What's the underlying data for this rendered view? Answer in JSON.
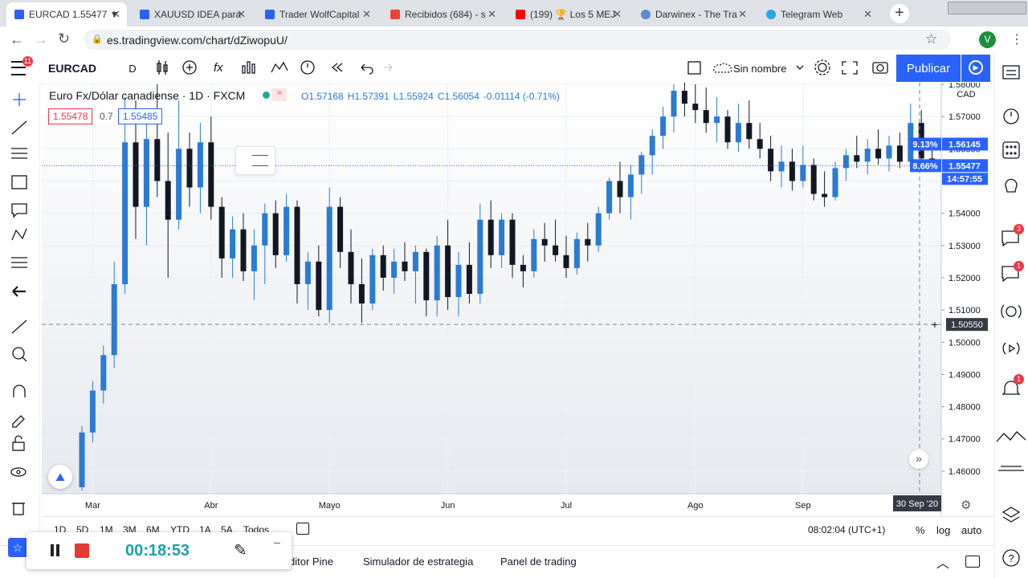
{
  "browser": {
    "tabs": [
      "EURCAD 1.55477 ▼",
      "XAUUSD IDEA para",
      "Trader WolfCapital",
      "Recibidos (684) - s",
      "(199) 🏆 Los 5 MEJ",
      "Darwinex - The Tra",
      "Telegram Web"
    ],
    "url": "es.tradingview.com/chart/dZiwopuU/",
    "profile": "V"
  },
  "toolbar": {
    "symbol": "EURCAD",
    "interval": "D",
    "layout_name": "Sin nombre",
    "publish": "Publicar",
    "alerts_badge": "11"
  },
  "legend": {
    "title": "Euro Fx/Dólar canadiense · 1D · FXCM",
    "ohlc": [
      "O1.57168",
      "H1.57391",
      "L1.55924",
      "C1.56054",
      "-0.01114 (-0.71%)"
    ],
    "bid": "1.55478",
    "spread": "0.7",
    "ask": "1.55485"
  },
  "chart_data": {
    "type": "candlestick",
    "currency": "CAD",
    "categories": [
      null,
      "Mar",
      null,
      null,
      null,
      null,
      null,
      null,
      null,
      null,
      null,
      null,
      "Abr",
      null,
      null,
      null,
      null,
      null,
      null,
      null,
      null,
      null,
      null,
      "Mayo",
      null,
      null,
      null,
      null,
      null,
      null,
      null,
      null,
      null,
      null,
      "Jun",
      null,
      null,
      null,
      null,
      null,
      null,
      null,
      null,
      null,
      null,
      "Jul",
      null,
      null,
      null,
      null,
      null,
      null,
      null,
      null,
      null,
      null,
      null,
      "Ago",
      null,
      null,
      null,
      null,
      null,
      null,
      null,
      null,
      null,
      "Sep",
      null,
      null,
      null,
      null,
      null,
      null,
      null,
      null,
      null,
      null,
      null,
      null
    ],
    "open": [
      1.455,
      1.472,
      1.485,
      1.496,
      1.518,
      1.562,
      1.542,
      1.563,
      1.55,
      1.538,
      1.56,
      1.548,
      1.562,
      1.542,
      1.526,
      1.535,
      1.522,
      1.53,
      1.54,
      1.527,
      1.542,
      1.518,
      1.525,
      1.51,
      1.542,
      1.528,
      1.518,
      1.512,
      1.527,
      1.52,
      1.525,
      1.522,
      1.528,
      1.513,
      1.53,
      1.514,
      1.524,
      1.515,
      1.538,
      1.527,
      1.538,
      1.524,
      1.522,
      1.532,
      1.53,
      1.527,
      1.523,
      1.532,
      1.53,
      1.54,
      1.55,
      1.545,
      1.552,
      1.558,
      1.564,
      1.57,
      1.578,
      1.574,
      1.572,
      1.568,
      1.57,
      1.562,
      1.568,
      1.563,
      1.56,
      1.553,
      1.556,
      1.55,
      1.555,
      1.546,
      1.545,
      1.554,
      1.558,
      1.556,
      1.56,
      1.557,
      1.561,
      1.556,
      1.568,
      1.557
    ],
    "high": [
      1.474,
      1.488,
      1.499,
      1.525,
      1.576,
      1.575,
      1.57,
      1.58,
      1.565,
      1.575,
      1.565,
      1.568,
      1.57,
      1.545,
      1.539,
      1.54,
      1.535,
      1.543,
      1.544,
      1.546,
      1.544,
      1.528,
      1.53,
      1.548,
      1.545,
      1.535,
      1.526,
      1.529,
      1.53,
      1.529,
      1.531,
      1.53,
      1.529,
      1.533,
      1.538,
      1.528,
      1.531,
      1.543,
      1.544,
      1.54,
      1.54,
      1.527,
      1.535,
      1.537,
      1.538,
      1.533,
      1.534,
      1.537,
      1.542,
      1.551,
      1.556,
      1.555,
      1.559,
      1.566,
      1.573,
      1.58,
      1.581,
      1.58,
      1.579,
      1.576,
      1.572,
      1.574,
      1.575,
      1.568,
      1.564,
      1.561,
      1.56,
      1.561,
      1.557,
      1.553,
      1.556,
      1.56,
      1.564,
      1.563,
      1.566,
      1.564,
      1.565,
      1.574,
      1.572,
      1.562
    ],
    "low": [
      1.454,
      1.469,
      1.481,
      1.492,
      1.515,
      1.532,
      1.53,
      1.545,
      1.52,
      1.535,
      1.542,
      1.54,
      1.538,
      1.52,
      1.52,
      1.519,
      1.513,
      1.518,
      1.523,
      1.525,
      1.512,
      1.51,
      1.508,
      1.506,
      1.523,
      1.512,
      1.506,
      1.51,
      1.516,
      1.515,
      1.519,
      1.512,
      1.508,
      1.508,
      1.51,
      1.508,
      1.512,
      1.512,
      1.523,
      1.523,
      1.52,
      1.517,
      1.52,
      1.525,
      1.525,
      1.52,
      1.521,
      1.525,
      1.528,
      1.538,
      1.54,
      1.538,
      1.546,
      1.552,
      1.56,
      1.565,
      1.57,
      1.568,
      1.565,
      1.562,
      1.56,
      1.559,
      1.56,
      1.557,
      1.55,
      1.548,
      1.547,
      1.548,
      1.544,
      1.542,
      1.544,
      1.55,
      1.554,
      1.552,
      1.555,
      1.553,
      1.554,
      1.553,
      1.554,
      1.554
    ],
    "close": [
      1.472,
      1.485,
      1.496,
      1.518,
      1.562,
      1.542,
      1.563,
      1.55,
      1.538,
      1.56,
      1.548,
      1.562,
      1.542,
      1.526,
      1.535,
      1.522,
      1.53,
      1.54,
      1.527,
      1.542,
      1.518,
      1.525,
      1.51,
      1.542,
      1.528,
      1.518,
      1.512,
      1.527,
      1.52,
      1.525,
      1.522,
      1.528,
      1.513,
      1.53,
      1.514,
      1.524,
      1.515,
      1.538,
      1.527,
      1.538,
      1.524,
      1.522,
      1.532,
      1.53,
      1.527,
      1.523,
      1.532,
      1.53,
      1.54,
      1.55,
      1.545,
      1.552,
      1.558,
      1.564,
      1.57,
      1.578,
      1.574,
      1.572,
      1.568,
      1.57,
      1.562,
      1.568,
      1.563,
      1.56,
      1.553,
      1.556,
      1.55,
      1.555,
      1.546,
      1.545,
      1.554,
      1.558,
      1.556,
      1.56,
      1.557,
      1.561,
      1.556,
      1.568,
      1.557,
      1.5548
    ],
    "up_color": "#2a7bd3",
    "down_color": "#131722",
    "ylim": [
      1.453,
      1.5805
    ],
    "yticks": [
      {
        "value": 1.46,
        "label": "1.46000"
      },
      {
        "value": 1.47,
        "label": "1.47000"
      },
      {
        "value": 1.48,
        "label": "1.48000"
      },
      {
        "value": 1.49,
        "label": "1.49000"
      },
      {
        "value": 1.5,
        "label": "1.50000"
      },
      {
        "value": 1.51,
        "label": "1.51000"
      },
      {
        "value": 1.52,
        "label": "1.52000"
      },
      {
        "value": 1.53,
        "label": "1.53000"
      },
      {
        "value": 1.54,
        "label": "1.54000"
      },
      {
        "value": 1.55,
        "label": "1.55000"
      },
      {
        "value": 1.56,
        "label": "1.56000"
      },
      {
        "value": 1.57,
        "label": "1.57000"
      },
      {
        "value": 1.58,
        "label": "1.58000"
      }
    ],
    "grid": true,
    "price_lines": [
      {
        "value": 1.56145,
        "change": "9.13%"
      },
      {
        "value": 1.55477,
        "change": "8.66%",
        "countdown": "14:57:55"
      }
    ],
    "crosshair": {
      "value": 1.5055,
      "label": "1.50550",
      "date": "30 Sep '20"
    }
  },
  "bottom_bar": {
    "ranges": [
      "1D",
      "5D",
      "1M",
      "3M",
      "6M",
      "YTD",
      "1A",
      "5A",
      "Todos"
    ],
    "clock": "08:02:04 (UTC+1)",
    "percent": "%",
    "log": "log",
    "auto": "auto"
  },
  "panel_tabs": [
    "ditor Pine",
    "Simulador de estrategia",
    "Panel de trading"
  ],
  "recorder": {
    "time": "00:18:53"
  },
  "sidebar_badges": [
    "3",
    "1",
    "1"
  ]
}
